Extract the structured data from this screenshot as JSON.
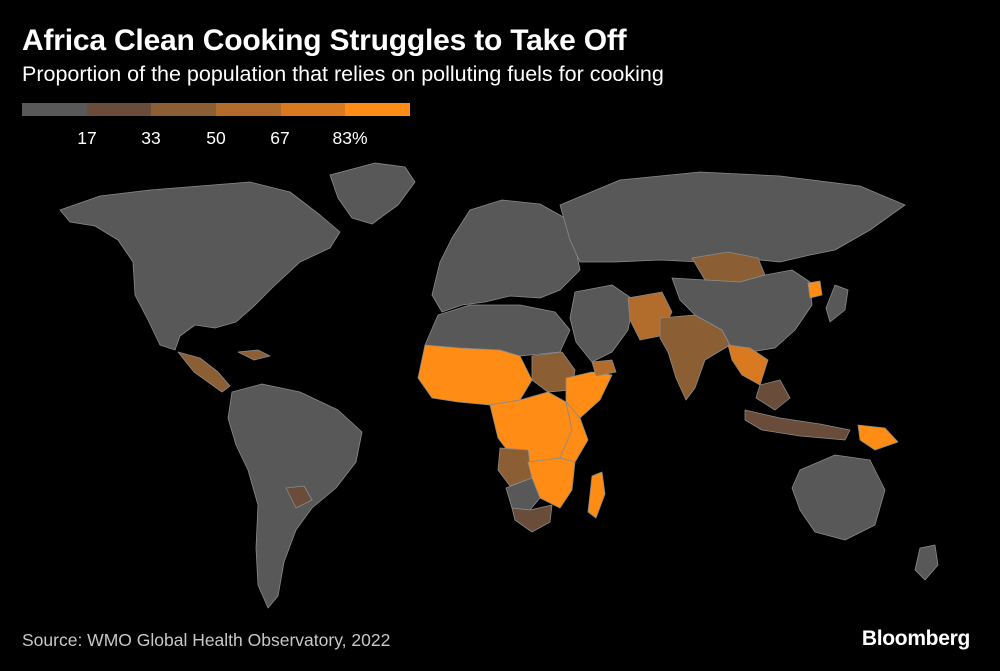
{
  "title": "Africa Clean Cooking Struggles to Take Off",
  "subtitle": "Proportion of the population that relies on polluting fuels for cooking",
  "legend": {
    "colors": [
      "#585858",
      "#694d3a",
      "#8c5e34",
      "#b26c2c",
      "#d97a20",
      "#ff8c14"
    ],
    "labels": [
      "17",
      "33",
      "50",
      "67",
      "83%"
    ]
  },
  "map": {
    "base_color": "#5a5a5a",
    "border_color": "#8a8a8a",
    "regions": [
      {
        "name": "north-america",
        "level": 0
      },
      {
        "name": "greenland",
        "level": 0
      },
      {
        "name": "central-america",
        "level": 2
      },
      {
        "name": "caribbean",
        "level": 2
      },
      {
        "name": "south-america",
        "level": 0
      },
      {
        "name": "paraguay",
        "level": 1
      },
      {
        "name": "europe",
        "level": 0
      },
      {
        "name": "russia",
        "level": 0
      },
      {
        "name": "north-africa",
        "level": 0
      },
      {
        "name": "west-africa",
        "level": 5
      },
      {
        "name": "central-africa",
        "level": 5
      },
      {
        "name": "east-africa",
        "level": 5
      },
      {
        "name": "sudan",
        "level": 2
      },
      {
        "name": "ethiopia",
        "level": 5
      },
      {
        "name": "angola",
        "level": 2
      },
      {
        "name": "zambia-mozambique",
        "level": 5
      },
      {
        "name": "namibia",
        "level": 0
      },
      {
        "name": "south-africa",
        "level": 1
      },
      {
        "name": "madagascar",
        "level": 5
      },
      {
        "name": "middle-east",
        "level": 0
      },
      {
        "name": "yemen",
        "level": 3
      },
      {
        "name": "afghanistan-pakistan",
        "level": 3
      },
      {
        "name": "india",
        "level": 2
      },
      {
        "name": "mongolia",
        "level": 2
      },
      {
        "name": "china",
        "level": 0
      },
      {
        "name": "north-korea",
        "level": 5
      },
      {
        "name": "myanmar-laos",
        "level": 4
      },
      {
        "name": "southeast-asia",
        "level": 1
      },
      {
        "name": "indonesia",
        "level": 1
      },
      {
        "name": "papua-new-guinea",
        "level": 5
      },
      {
        "name": "australia",
        "level": 0
      },
      {
        "name": "new-zealand",
        "level": 0
      },
      {
        "name": "japan",
        "level": 0
      }
    ]
  },
  "source": "Source: WMO Global Health Observatory, 2022",
  "brand": "Bloomberg"
}
